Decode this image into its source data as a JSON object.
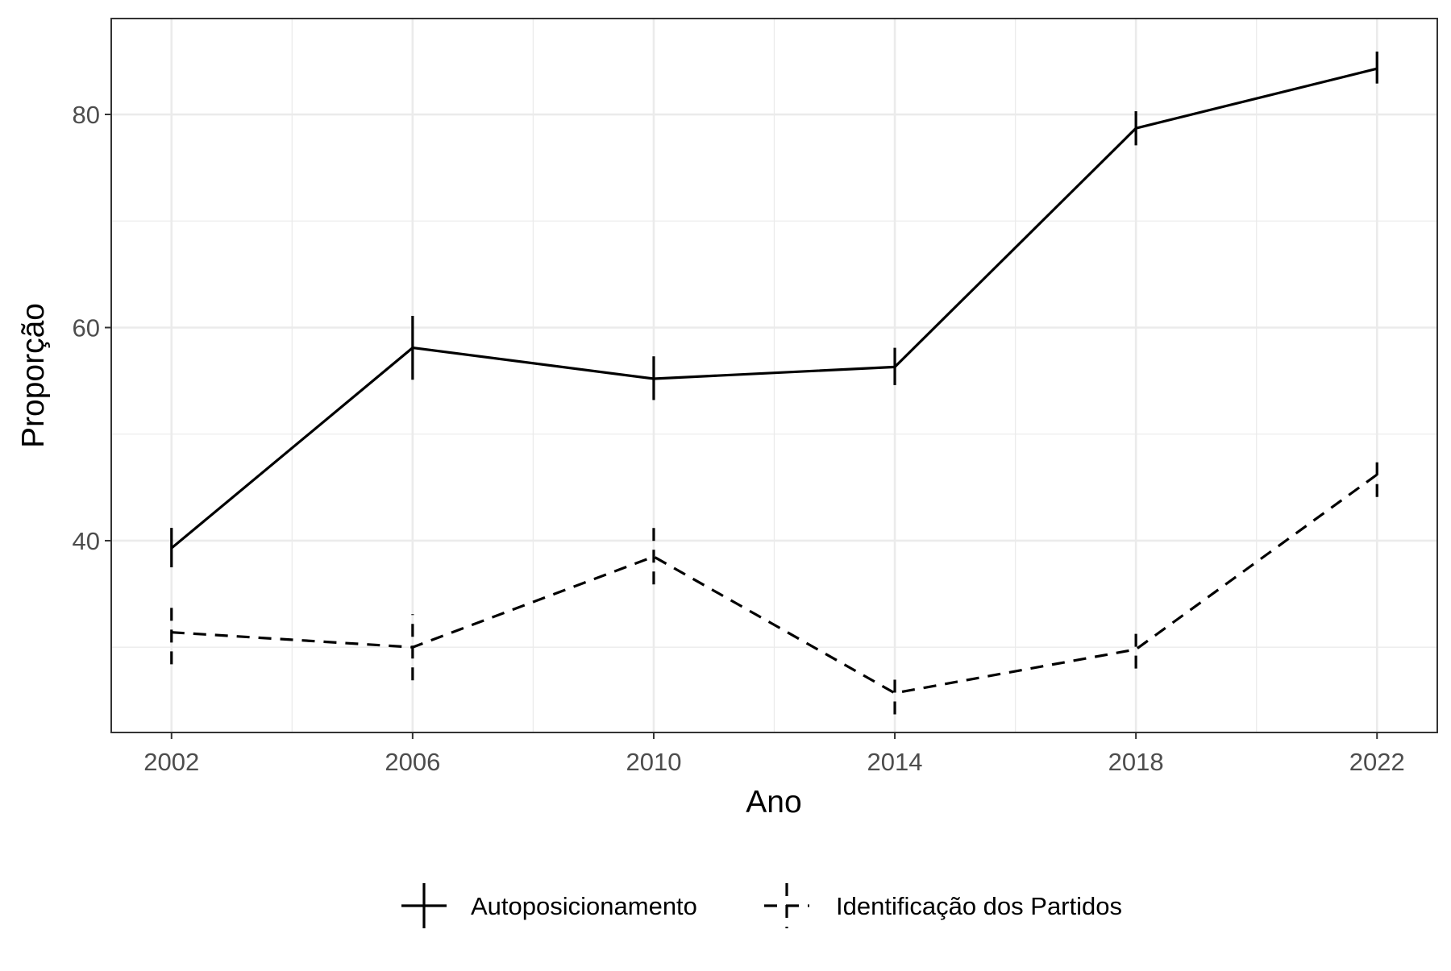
{
  "chart_data": {
    "type": "line",
    "title": "",
    "xlabel": "Ano",
    "ylabel": "Proporção",
    "x": [
      2002,
      2006,
      2010,
      2014,
      2018,
      2022
    ],
    "xlim": [
      2001,
      2023
    ],
    "ylim": [
      22,
      89
    ],
    "x_ticks": [
      2002,
      2006,
      2010,
      2014,
      2018,
      2022
    ],
    "y_ticks": [
      40,
      60,
      80
    ],
    "grid": true,
    "error_bars": true,
    "legend_position": "bottom",
    "colors": {
      "line": "#000000",
      "grid": "#ebebeb",
      "tick_text": "#4d4d4d"
    },
    "series": [
      {
        "name": "Autoposicionamento",
        "linetype": "solid",
        "values": [
          39.3,
          58.1,
          55.2,
          56.3,
          78.7,
          84.3
        ],
        "lower": [
          37.5,
          55.1,
          53.2,
          54.6,
          77.1,
          82.9
        ],
        "upper": [
          41.2,
          61.1,
          57.3,
          58.1,
          80.3,
          85.9
        ]
      },
      {
        "name": "Identificação dos Partidos",
        "linetype": "dashed",
        "values": [
          31.4,
          30.0,
          38.5,
          25.7,
          29.8,
          46.2
        ],
        "lower": [
          28.4,
          26.9,
          35.9,
          23.7,
          28.0,
          44.1
        ],
        "upper": [
          34.4,
          33.1,
          41.3,
          27.7,
          31.6,
          48.0
        ]
      }
    ]
  }
}
